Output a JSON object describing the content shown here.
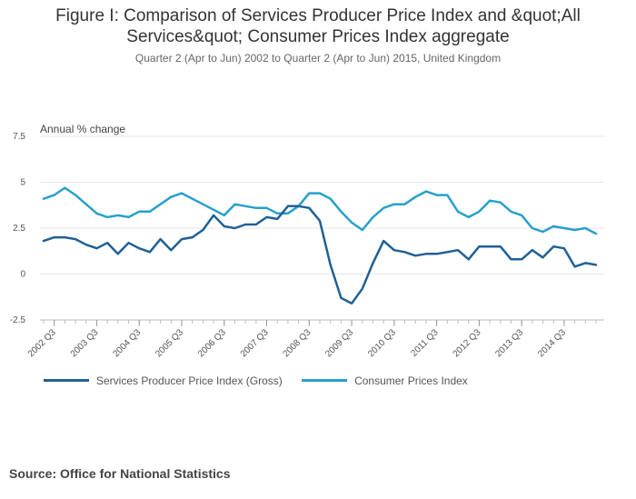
{
  "colors": {
    "sppi": "#206095",
    "cpi": "#27a0cc",
    "grid": "#e6e6e6",
    "axis": "#bbbbbb"
  },
  "chart_data": {
    "type": "line",
    "title": "Figure I: Comparison of Services Producer Price Index and &quot;All Services&quot; Consumer Prices Index aggregate",
    "subtitle": "Quarter 2 (Apr to Jun) 2002 to Quarter 2 (Apr to Jun) 2015, United Kingdom",
    "ylabel": "Annual % change",
    "xlabel": "",
    "ylim": [
      -2.5,
      7.5
    ],
    "yticks": [
      "7.5",
      "5",
      "2.5",
      "0",
      "-2.5"
    ],
    "ytick_values": [
      7.5,
      5,
      2.5,
      0,
      -2.5
    ],
    "x_tick_labels": [
      "2002 Q3",
      "2003 Q3",
      "2004 Q3",
      "2005 Q3",
      "2006 Q3",
      "2007 Q3",
      "2008 Q3",
      "2009 Q3",
      "2010 Q3",
      "2011 Q3",
      "2012 Q3",
      "2013 Q3",
      "2014 Q3"
    ],
    "x_tick_index": [
      1,
      5,
      9,
      13,
      17,
      21,
      25,
      29,
      33,
      37,
      41,
      45,
      49
    ],
    "n_points": 53,
    "series": [
      {
        "name": "Services Producer Price Index (Gross)",
        "values": [
          1.8,
          2.0,
          2.0,
          1.9,
          1.6,
          1.4,
          1.7,
          1.1,
          1.7,
          1.4,
          1.2,
          1.9,
          1.3,
          1.9,
          2.0,
          2.4,
          3.2,
          2.6,
          2.5,
          2.7,
          2.7,
          3.1,
          3.0,
          3.7,
          3.7,
          3.6,
          2.9,
          0.5,
          -1.3,
          -1.6,
          -0.8,
          0.6,
          1.8,
          1.3,
          1.2,
          1.0,
          1.1,
          1.1,
          1.2,
          1.3,
          0.8,
          1.5,
          1.5,
          1.5,
          0.8,
          0.8,
          1.3,
          0.9,
          1.5,
          1.4,
          0.4,
          0.6,
          0.5
        ]
      },
      {
        "name": "Consumer Prices Index",
        "values": [
          4.1,
          4.3,
          4.7,
          4.3,
          3.8,
          3.3,
          3.1,
          3.2,
          3.1,
          3.4,
          3.4,
          3.8,
          4.2,
          4.4,
          4.1,
          3.8,
          3.5,
          3.2,
          3.8,
          3.7,
          3.6,
          3.6,
          3.3,
          3.3,
          3.7,
          4.4,
          4.4,
          4.1,
          3.4,
          2.8,
          2.4,
          3.1,
          3.6,
          3.8,
          3.8,
          4.2,
          4.5,
          4.3,
          4.3,
          3.4,
          3.1,
          3.4,
          4.0,
          3.9,
          3.4,
          3.2,
          2.5,
          2.3,
          2.6,
          2.5,
          2.4,
          2.5,
          2.2
        ]
      }
    ]
  },
  "source": "Source: Office for National Statistics"
}
